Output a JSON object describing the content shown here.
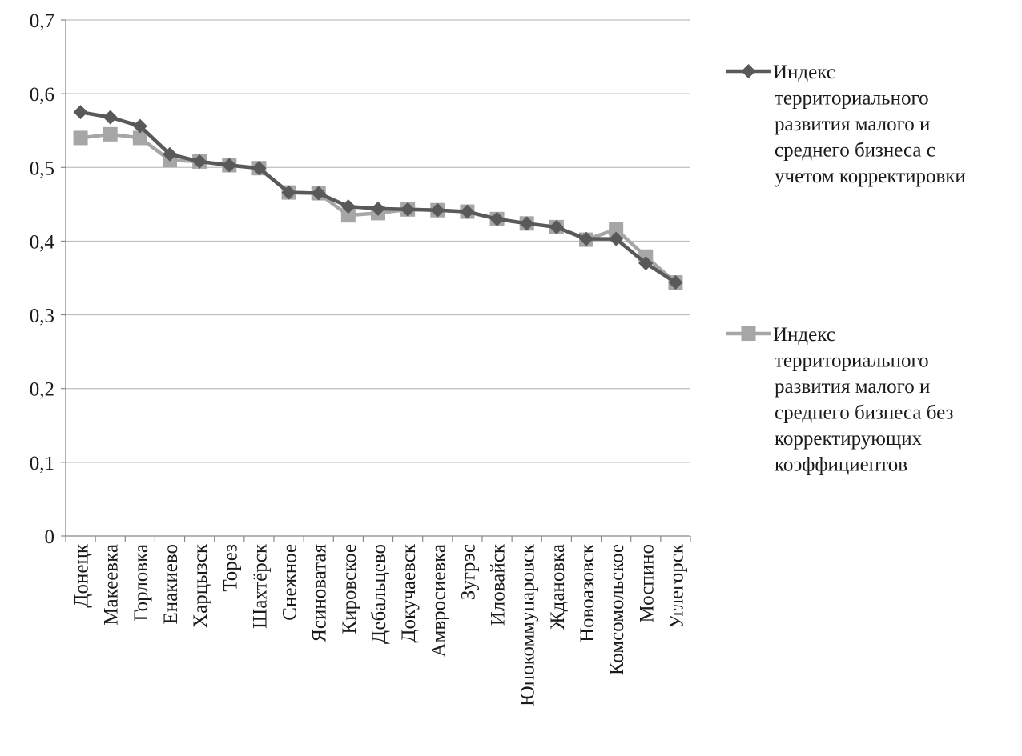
{
  "chart_data": {
    "type": "line",
    "categories": [
      "Донецк",
      "Макеевка",
      "Горловка",
      "Енакиево",
      "Харцызск",
      "Торез",
      "Шахтёрск",
      "Снежное",
      "Ясиноватая",
      "Кировское",
      "Дебальцево",
      "Докучаевск",
      "Амвросиевка",
      "Зугрэс",
      "Иловайск",
      "Юнокоммунаровск",
      "Ждановка",
      "Новоазовск",
      "Комсомольское",
      "Моспино",
      "Углегорск"
    ],
    "series": [
      {
        "name": "Индекс территориального развития малого и среднего бизнеса с учетом корректировки",
        "marker": "diamond",
        "color": "#595959",
        "values": [
          0.575,
          0.568,
          0.556,
          0.518,
          0.508,
          0.503,
          0.499,
          0.466,
          0.465,
          0.447,
          0.444,
          0.443,
          0.442,
          0.44,
          0.43,
          0.424,
          0.419,
          0.403,
          0.403,
          0.37,
          0.344
        ]
      },
      {
        "name": "Индекс территориального развития малого и среднего бизнеса без корректирующих коэффициентов",
        "marker": "square",
        "color": "#a6a6a6",
        "values": [
          0.54,
          0.545,
          0.54,
          0.51,
          0.508,
          0.503,
          0.499,
          0.466,
          0.465,
          0.435,
          0.438,
          0.443,
          0.442,
          0.44,
          0.43,
          0.424,
          0.419,
          0.402,
          0.416,
          0.379,
          0.344
        ]
      }
    ],
    "yticks": [
      "0",
      "0,1",
      "0,2",
      "0,3",
      "0,4",
      "0,5",
      "0,6",
      "0,7"
    ],
    "ylim": [
      0,
      0.7
    ],
    "grid": true,
    "legend_position": "right",
    "title": "",
    "xlabel": "",
    "ylabel": ""
  }
}
